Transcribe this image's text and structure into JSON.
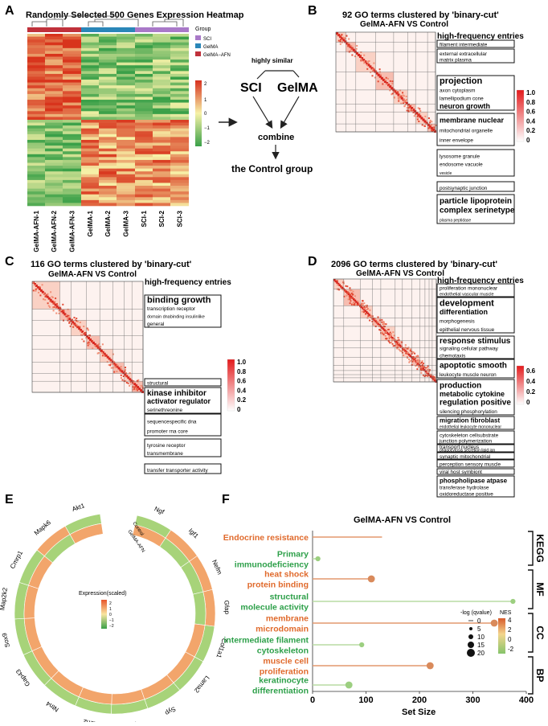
{
  "figure": {
    "panels": [
      "A",
      "B",
      "C",
      "D",
      "E",
      "F"
    ]
  },
  "panelA": {
    "title": "Randomly Selected 500 Genes Expression Heatmap",
    "legend_title": "Group",
    "groups": [
      "SCI",
      "GelMA",
      "GelMA−AFN"
    ],
    "group_colors": [
      "#a979c8",
      "#2a86b8",
      "#c0313b"
    ],
    "scale_ticks": [
      "2",
      "1",
      "0",
      "−1",
      "−2"
    ],
    "samples": [
      "GelMA-AFN-1",
      "GelMA-AFN-2",
      "GelMA-AFN-3",
      "GelMA-1",
      "GelMA-2",
      "GelMA-3",
      "SCI-1",
      "SCI-2",
      "SCI-3"
    ]
  },
  "flow": {
    "top": "highly similar",
    "left": "SCI",
    "right": "GelMA",
    "mid": "combine",
    "bottom": "the Control group"
  },
  "panelB": {
    "title": "92 GO terms clustered by 'binary-cut'",
    "subtitle": "GelMA-AFN VS Control",
    "header": "high-frequency entries",
    "scale_ticks": [
      "1.0",
      "0.8",
      "0.6",
      "0.4",
      "0.2",
      "0"
    ],
    "boxes": [
      {
        "lines": [
          "filament  intermediate"
        ]
      },
      {
        "lines": [
          "external  extracellular",
          "matrix  plasma"
        ]
      },
      {
        "lines": [
          "projection",
          "axon cytoplasm",
          "lamellipodium cone",
          "neuron growth"
        ]
      },
      {
        "lines": [
          "membrane  nuclear",
          "mitochondrial  organelle",
          "inner  envelope"
        ]
      },
      {
        "lines": [
          "lysosome  granule",
          "endosome  vacuole",
          "vesicle"
        ]
      },
      {
        "lines": [
          "postsynaptic  junction"
        ]
      },
      {
        "lines": [
          "particle  lipoprotein",
          "complex  serinetype",
          "plasma  peptidase"
        ]
      }
    ]
  },
  "panelC": {
    "title": "116 GO terms clustered by 'binary-cut'",
    "subtitle": "GelMA-AFN VS Control",
    "header": "high-frequency entries",
    "scale_ticks": [
      "1.0",
      "0.8",
      "0.6",
      "0.4",
      "0.2",
      "0"
    ],
    "boxes": [
      {
        "lines": [
          "binding  growth",
          "transcription  receptor",
          "domain dnabinding insulinlike",
          "general"
        ]
      },
      {
        "lines": [
          "structural"
        ]
      },
      {
        "lines": [
          "kinase  inhibitor",
          "activator  regulator",
          "serinethreonine"
        ]
      },
      {
        "lines": [
          "sequencespecific  dna",
          "promoter  rna  core"
        ]
      },
      {
        "lines": [
          "tyrosine  receptor",
          "transmembrane"
        ]
      },
      {
        "lines": [
          "transfer  transporter  activity"
        ]
      }
    ]
  },
  "panelD": {
    "title": "2096 GO terms clustered by 'binary-cut'",
    "subtitle": "GelMA-AFN VS Control",
    "header": "high-frequency entries",
    "scale_ticks": [
      "0.6",
      "0.4",
      "0.2",
      "0"
    ],
    "boxes": [
      {
        "lines": [
          "proliferation  mononuclear",
          "endothelial  vascular  muscle"
        ]
      },
      {
        "lines": [
          "development",
          "differentiation",
          "morphogenesis",
          "epithelial  nervous  tissue"
        ]
      },
      {
        "lines": [
          "response  stimulus",
          "signaling  cellular  pathway",
          "chemotaxis"
        ]
      },
      {
        "lines": [
          "apoptotic  smooth",
          "leukocyte  muscle  neuron"
        ]
      },
      {
        "lines": [
          "production",
          "metabolic  cytokine",
          "regulation  positive",
          "silencing  phosphorylation"
        ]
      },
      {
        "lines": [
          "migration  fibroblast",
          "endothelial leukocyte mononuclear"
        ]
      },
      {
        "lines": [
          "cytoskeleton  cellsubstrate",
          "junction  polymerization"
        ]
      },
      {
        "lines": [
          "transport  nucleus",
          "phagocytosis secretion  lipid  ion"
        ]
      },
      {
        "lines": [
          "synaptic  mitochondrial"
        ]
      },
      {
        "lines": [
          "perception  sensory  muscle"
        ]
      },
      {
        "lines": [
          "viral  host  symbiont"
        ]
      },
      {
        "lines": [
          "phospholipase  atpase",
          "transferase  hydrolase",
          "oxidoreductase  positive"
        ]
      }
    ]
  },
  "panelE": {
    "genes": [
      "Ngf",
      "Igf1",
      "Nefm",
      "Gfap",
      "Col1a1",
      "Lama2",
      "Syp",
      "Arc",
      "Ezh2",
      "Ntn4",
      "Gap43",
      "Sox9",
      "Map2k2",
      "Cmrp1",
      "Mapk6",
      "Akt1"
    ],
    "outer_values": [
      0.2,
      0.8,
      0.8,
      0.8,
      0.2,
      0.3,
      0.2,
      0.2,
      0.2,
      0.2,
      0.2,
      0.2,
      0.2,
      0.2,
      0.8,
      0.2
    ],
    "inner_values": [
      0.8,
      0.2,
      0.2,
      0.2,
      0.8,
      0.8,
      0.8,
      0.8,
      0.8,
      0.8,
      0.8,
      0.8,
      0.8,
      0.8,
      0.2,
      0.8
    ],
    "ring_labels": [
      "Control",
      "GelMA-AFN"
    ],
    "legend_title": "Expression(scaled)",
    "legend_ticks": [
      "2",
      "1",
      "0",
      "−1",
      "−2"
    ]
  },
  "chart_data": {
    "type": "scatter",
    "title": "GelMA-AFN VS Control",
    "xlabel": "Set Size",
    "ylabel": "",
    "xlim": [
      0,
      400
    ],
    "xticks": [
      "0",
      "100",
      "200",
      "300",
      "400"
    ],
    "categories": [
      {
        "label": [
          "Endocrine resistance"
        ],
        "set_size": 130,
        "nes": 3.0,
        "neglog_q": 0.5,
        "group": "KEGG",
        "show_point": false
      },
      {
        "label": [
          "Primary",
          "immunodeficiency"
        ],
        "set_size": 10,
        "nes": -2.0,
        "neglog_q": 5,
        "group": "KEGG",
        "show_point": true
      },
      {
        "label": [
          "heat shock",
          "protein binding"
        ],
        "set_size": 110,
        "nes": 3.0,
        "neglog_q": 10,
        "group": "MF",
        "show_point": true
      },
      {
        "label": [
          "structural",
          "molecule activity"
        ],
        "set_size": 375,
        "nes": -2.0,
        "neglog_q": 5,
        "group": "MF",
        "show_point": true
      },
      {
        "label": [
          "membrane",
          "microdomain"
        ],
        "set_size": 340,
        "nes": 3.0,
        "neglog_q": 10,
        "group": "CC",
        "show_point": true
      },
      {
        "label": [
          "intermediate filament",
          "cytoskeleton"
        ],
        "set_size": 92,
        "nes": -2.0,
        "neglog_q": 5,
        "group": "CC",
        "show_point": true
      },
      {
        "label": [
          "muscle cell",
          "proliferation"
        ],
        "set_size": 220,
        "nes": 3.0,
        "neglog_q": 10,
        "group": "BP",
        "show_point": true
      },
      {
        "label": [
          "keratinocyte",
          "differentiation"
        ],
        "set_size": 68,
        "nes": -2.0,
        "neglog_q": 10,
        "group": "BP",
        "show_point": true
      }
    ],
    "groups": [
      "KEGG",
      "MF",
      "CC",
      "BP"
    ],
    "size_legend_title": "-log (qvalue)",
    "size_legend_values": [
      "0",
      "5",
      "10",
      "15",
      "20"
    ],
    "color_legend_title": "NES",
    "color_legend_ticks": [
      "4",
      "2",
      "0",
      "-2"
    ],
    "pos_color": "#e06a2c",
    "neg_color": "#2ea04a"
  }
}
